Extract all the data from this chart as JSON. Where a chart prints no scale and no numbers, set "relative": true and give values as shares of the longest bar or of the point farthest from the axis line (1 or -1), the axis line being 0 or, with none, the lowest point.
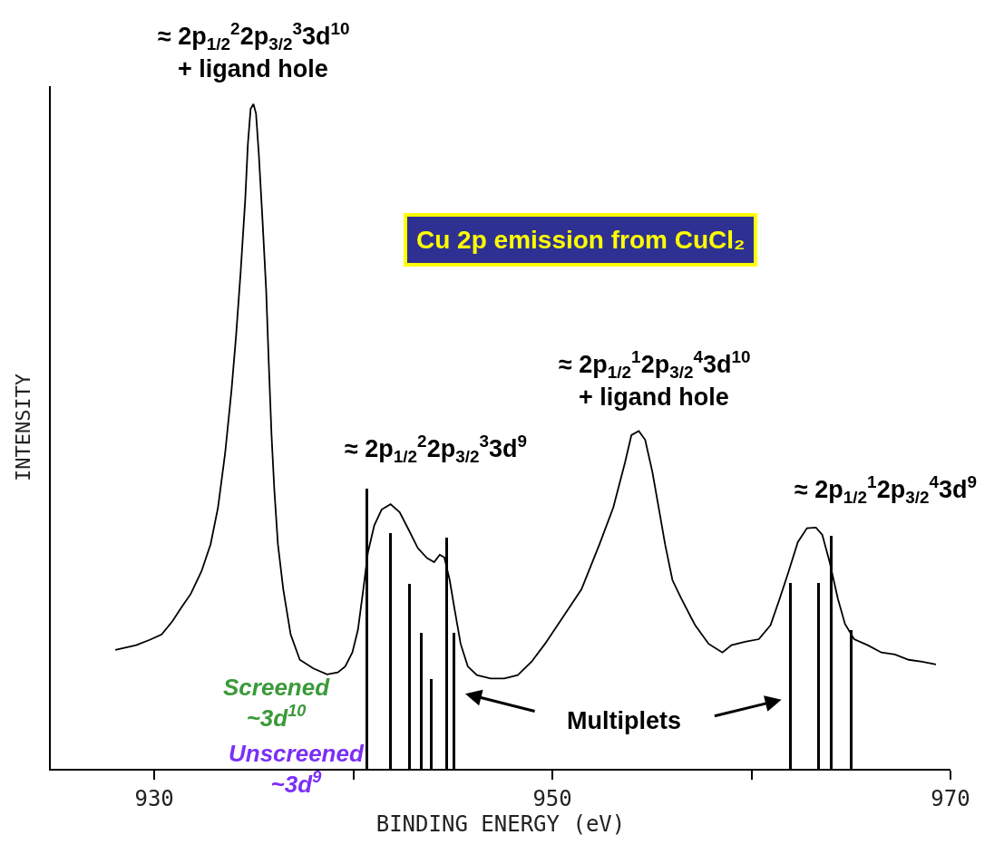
{
  "chart_data": {
    "type": "line",
    "title": "Cu 2p emission from CuCl₂",
    "xlabel": "BINDING ENERGY (eV)",
    "ylabel": "INTENSITY",
    "relative": true,
    "xlim": [
      924.8,
      970
    ],
    "xticks": [
      930,
      {
        "value": 940,
        "label": null
      },
      950,
      {
        "value": 960,
        "label": null
      },
      970
    ],
    "marker": "none",
    "line_style": "solid",
    "series": [
      {
        "color": "#000000",
        "x": [
          928.04,
          929.09,
          929.77,
          930.37,
          930.91,
          931.37,
          931.83,
          932.37,
          932.83,
          933.2,
          933.56,
          933.88,
          934.11,
          934.34,
          934.57,
          934.7,
          934.84,
          934.98,
          935.11,
          935.25,
          935.43,
          935.62,
          935.75,
          935.89,
          936.03,
          936.21,
          936.48,
          936.85,
          937.31,
          937.99,
          938.68,
          939.22,
          939.59,
          939.95,
          940.23,
          940.5,
          940.73,
          941.05,
          941.42,
          941.87,
          942.33,
          942.79,
          943.24,
          943.7,
          944.06,
          944.34,
          944.57,
          944.84,
          945.07,
          945.39,
          945.75,
          946.21,
          946.89,
          947.58,
          948.26,
          948.95,
          949.63,
          950.55,
          951.46,
          952.37,
          953.06,
          953.65,
          953.97,
          954.34,
          954.66,
          955.02,
          955.34,
          955.66,
          956.03,
          956.48,
          957.17,
          957.85,
          958.54,
          959.0,
          959.68,
          960.37,
          960.96,
          961.42,
          961.87,
          962.33,
          962.79,
          963.24,
          963.56,
          963.93,
          964.34,
          964.7,
          965.16,
          965.84,
          966.53,
          967.21,
          967.9,
          968.58,
          969.27
        ],
        "values": [
          0.179,
          0.186,
          0.194,
          0.202,
          0.222,
          0.243,
          0.263,
          0.297,
          0.338,
          0.393,
          0.475,
          0.57,
          0.652,
          0.748,
          0.857,
          0.939,
          0.993,
          1,
          0.986,
          0.925,
          0.829,
          0.72,
          0.611,
          0.502,
          0.42,
          0.338,
          0.27,
          0.202,
          0.164,
          0.151,
          0.142,
          0.145,
          0.154,
          0.175,
          0.209,
          0.27,
          0.325,
          0.366,
          0.39,
          0.398,
          0.386,
          0.359,
          0.332,
          0.317,
          0.311,
          0.322,
          0.318,
          0.284,
          0.243,
          0.188,
          0.154,
          0.141,
          0.136,
          0.136,
          0.141,
          0.161,
          0.188,
          0.229,
          0.27,
          0.338,
          0.393,
          0.461,
          0.502,
          0.508,
          0.495,
          0.447,
          0.393,
          0.338,
          0.284,
          0.256,
          0.216,
          0.188,
          0.175,
          0.186,
          0.191,
          0.195,
          0.216,
          0.256,
          0.297,
          0.341,
          0.362,
          0.363,
          0.352,
          0.311,
          0.256,
          0.218,
          0.195,
          0.186,
          0.175,
          0.172,
          0.164,
          0.161,
          0.157
        ]
      },
      {
        "type": "bar",
        "color": "#000000",
        "x": [
          940.68,
          941.87,
          942.83,
          943.42,
          943.93,
          944.7,
          945.07,
          961.96,
          963.38,
          964.02,
          965.02
        ],
        "values": [
          0.422,
          0.355,
          0.278,
          0.205,
          0.135,
          0.348,
          0.205,
          0.28,
          0.28,
          0.351,
          0.209
        ]
      }
    ],
    "annotations": [
      {
        "text": "≈ 2p$_{1/2}$$^{2}$2p$_{3/2}$$^{3}$3d$^{10}$",
        "x": 934.98,
        "y": 1
      },
      {
        "text": "+ ligand hole",
        "x": 934.98,
        "y": 1
      },
      {
        "text": "≈ 2p$_{1/2}$$^{2}$2p$_{3/2}$$^{3}$3d$^{9}$",
        "x": 941.87,
        "y": 0.398
      },
      {
        "text": "≈ 2p$_{1/2}$$^{1}$2p$_{3/2}$$^{4}$3d$^{10}$",
        "x": 954.34,
        "y": 0.508
      },
      {
        "text": "+ ligand hole",
        "x": 954.34,
        "y": 0.508
      },
      {
        "text": "≈ 2p$_{1/2}$$^{1}$2p$_{3/2}$$^{4}$3d$^{9}$",
        "x": 963.24,
        "y": 0.363
      },
      "Screened\n~3d$^{10}$",
      "Unscreened\n~3d$^{9}$",
      "Multiplets"
    ]
  }
}
